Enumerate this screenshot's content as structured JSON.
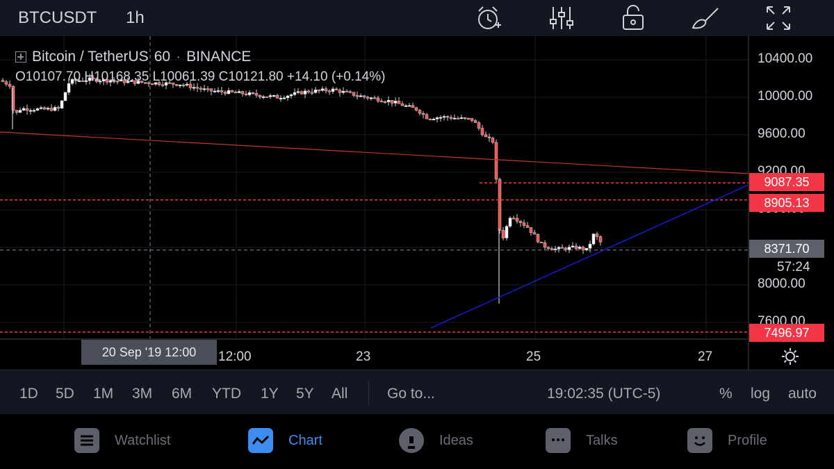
{
  "header": {
    "symbol": "BTCUSDT",
    "interval": "1h",
    "icons": [
      "alarm-add-icon",
      "indicators-icon",
      "lock-icon",
      "drawing-brush-icon",
      "fullscreen-icon"
    ]
  },
  "legend": {
    "title": "Bitcoin / TetherUS",
    "resolution": "60",
    "exchange": "BINANCE",
    "ohlc": "O10107.70 H10168.35 L10061.39 C10121.80 +14.10 (+0.14%)"
  },
  "price_axis": {
    "ticks": [
      "10400.00",
      "10000.00",
      "9600.00",
      "9200.00",
      "8800.00",
      "8000.00",
      "7600.00"
    ],
    "tags": [
      {
        "label": "9087.35",
        "color": "#f23645"
      },
      {
        "label": "8905.13",
        "color": "#f23645"
      },
      {
        "label": "8371.70",
        "color": "#5d606b"
      },
      {
        "label": "7496.97",
        "color": "#f23645"
      }
    ],
    "countdown": "57:24"
  },
  "time_axis": {
    "ticks": [
      "12:00",
      "23",
      "25",
      "27"
    ],
    "crosshair_label": "20 Sep '19   12:00"
  },
  "chart_data": {
    "type": "candlestick",
    "symbol": "BTCUSDT",
    "ylim": [
      7400,
      10550
    ],
    "horizontal_levels": [
      9087.35,
      8905.13,
      7496.97
    ],
    "last_price": 8371.7,
    "colors": {
      "up": "#ffffff",
      "down": "#ef5350",
      "level": "#f23645",
      "trend": "#1a1ad6",
      "resistance": "#c0362c"
    }
  },
  "range_bar": {
    "items": [
      "1D",
      "5D",
      "1M",
      "3M",
      "6M",
      "YTD",
      "1Y",
      "5Y",
      "All"
    ],
    "goto": "Go to...",
    "clock": "19:02:35 (UTC-5)",
    "percent": "%",
    "log": "log",
    "auto": "auto"
  },
  "tabs": [
    {
      "label": "Watchlist",
      "icon": "list-icon",
      "active": false
    },
    {
      "label": "Chart",
      "icon": "chart-icon",
      "active": true
    },
    {
      "label": "Ideas",
      "icon": "lightbulb-icon",
      "active": false
    },
    {
      "label": "Talks",
      "icon": "chat-icon",
      "active": false
    },
    {
      "label": "Profile",
      "icon": "profile-icon",
      "active": false
    }
  ]
}
